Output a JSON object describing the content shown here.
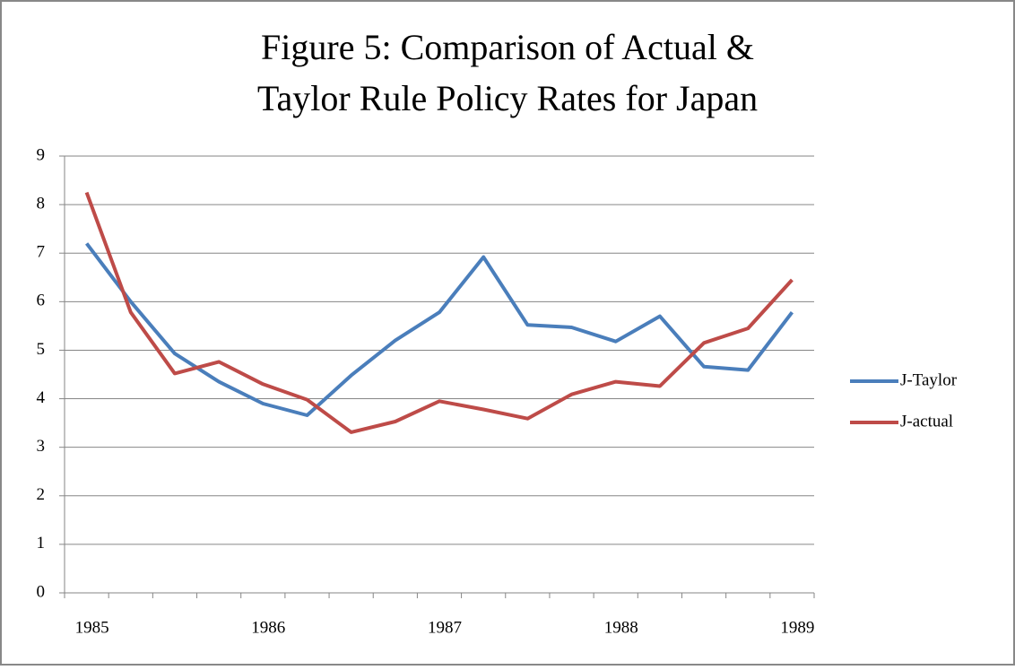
{
  "chart_data": {
    "type": "line",
    "title": [
      "Figure 5: Comparison of Actual &",
      "Taylor Rule Policy Rates for Japan"
    ],
    "categories": [
      "1985",
      null,
      null,
      null,
      "1986",
      null,
      null,
      null,
      "1987",
      null,
      null,
      null,
      "1988",
      null,
      null,
      null,
      "1989"
    ],
    "series": [
      {
        "name": "J-Taylor",
        "color": "#4a7ebb",
        "values": [
          7.2,
          6.0,
          4.93,
          4.35,
          3.9,
          3.66,
          4.48,
          5.2,
          5.78,
          6.92,
          5.52,
          5.47,
          5.18,
          5.7,
          4.66,
          4.59,
          5.78
        ]
      },
      {
        "name": "J-actual",
        "color": "#be4b48",
        "values": [
          8.25,
          5.78,
          4.52,
          4.76,
          4.3,
          3.98,
          3.31,
          3.53,
          3.95,
          3.78,
          3.59,
          4.09,
          4.35,
          4.26,
          5.15,
          5.45,
          6.45
        ]
      }
    ],
    "ylim": [
      0,
      9
    ],
    "yticks": [
      0,
      1,
      2,
      3,
      4,
      5,
      6,
      7,
      8,
      9
    ],
    "grid": true,
    "legend": "right"
  }
}
